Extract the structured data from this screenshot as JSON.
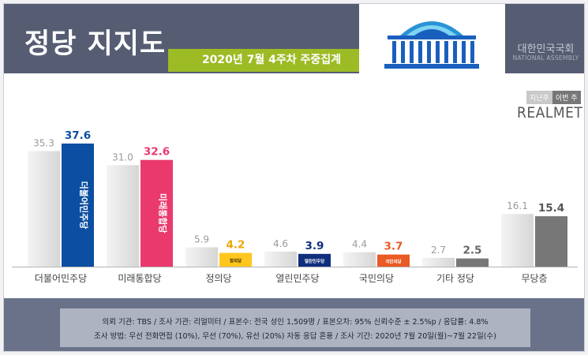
{
  "header": {
    "title": "정당 지지도",
    "subtitle": "2020년 7월 4주차 주중집계",
    "assembly_name": "대한민국국회",
    "assembly_en": "NATIONAL ASSEMBLY"
  },
  "legend": {
    "prev": "지난주",
    "cur": "이번 주",
    "brand": "REALMETER"
  },
  "colors": {
    "prev_bar": "#dedede",
    "cur_default": "#777777",
    "header": "#565d73",
    "subtitle": "#9cbb24"
  },
  "chart_data": {
    "type": "bar",
    "categories": [
      "더불어민주당",
      "미래통합당",
      "정의당",
      "열린민주당",
      "국민의당",
      "기타 정당",
      "무당층"
    ],
    "series": [
      {
        "name": "지난주",
        "values": [
          35.3,
          31.0,
          5.9,
          4.6,
          4.4,
          2.7,
          16.1
        ]
      },
      {
        "name": "이번 주",
        "values": [
          37.6,
          32.6,
          4.2,
          3.9,
          3.7,
          2.5,
          15.4
        ]
      }
    ],
    "value_labels_prev": [
      "35.3",
      "31.0",
      "5.9",
      "4.6",
      "4.4",
      "2.7",
      "16.1"
    ],
    "value_labels_cur": [
      "37.6",
      "32.6",
      "4.2",
      "3.9",
      "3.7",
      "2.5",
      "15.4"
    ],
    "cur_colors": [
      "#0b4ea2",
      "#ea3a6d",
      "#ffc61e",
      "#0f2e7d",
      "#ea5a24",
      "#777777",
      "#777777"
    ],
    "cur_label_colors": [
      "#0b4ea2",
      "#ea3a6d",
      "#e8a800",
      "#0f2e7d",
      "#ea5a24",
      "#666666",
      "#555555"
    ],
    "bar_logos": [
      "더불어민주당",
      "미래통합당",
      "정의당",
      "열린민주당",
      "국민의당",
      "",
      ""
    ],
    "ylim": [
      0,
      40
    ],
    "grid": false
  },
  "footer": {
    "line1": "의뢰 기관: TBS / 조사 기관: 리얼미터 / 표본수: 전국 성인 1,509명 / 표본오차: 95% 신뢰수준 ± 2.5%p / 응답률: 4.8%",
    "line2": "조사 방법: 무선 전화면접 (10%), 무선 (70%), 유선 (20%) 자동 응답 혼용 / 조사 기간: 2020년 7월 20일(월)~7월 22일(수)"
  }
}
